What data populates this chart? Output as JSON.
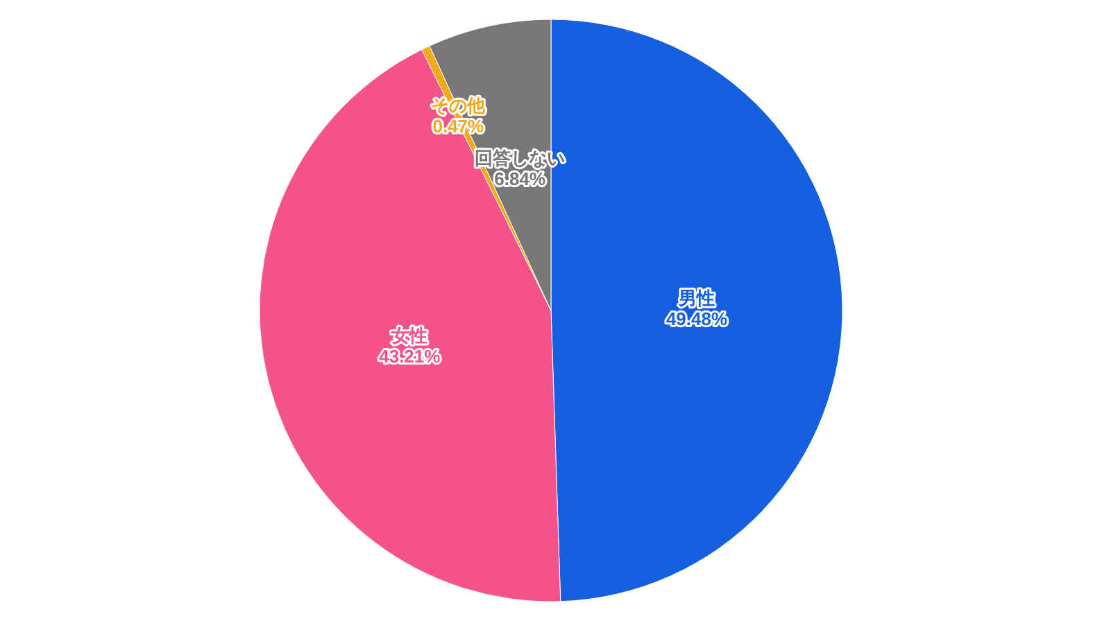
{
  "chart_data": {
    "type": "pie",
    "categories": [
      "男性",
      "女性",
      "その他",
      "回答しない"
    ],
    "values": [
      49.48,
      43.21,
      0.47,
      6.84
    ],
    "value_labels": [
      "49.48%",
      "43.21%",
      "0.47%",
      "6.84%"
    ],
    "colors": [
      "#155ee0",
      "#f4538a",
      "#f4a91a",
      "#777777"
    ]
  }
}
